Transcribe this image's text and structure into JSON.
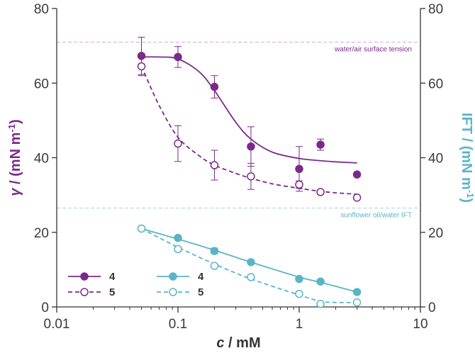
{
  "chart_data": {
    "type": "scatter",
    "xlabel": {
      "var": "c",
      "unit": " / mM"
    },
    "ylabel_left": {
      "var": "γ",
      "unit": " / (mN m",
      "sup": "-1",
      "close": ")"
    },
    "ylabel_right": {
      "prefix": "IFT / (mN m",
      "sup": "-1",
      "close": ")"
    },
    "x_scale": "log",
    "xlim": [
      0.01,
      10
    ],
    "ylim": [
      0,
      80
    ],
    "x_ticks": [
      0.01,
      0.1,
      1,
      10
    ],
    "x_tick_labels": [
      "0.01",
      "0.1",
      "1",
      "10"
    ],
    "y_ticks": [
      0,
      20,
      40,
      60,
      80
    ],
    "y_tick_labels": [
      "0",
      "20",
      "40",
      "60",
      "80"
    ],
    "colors": {
      "purple": "#7b2a8a",
      "blue": "#5ab4c8",
      "ref_purple": "#dca3dc",
      "ref_blue": "#a8d6e0",
      "axis": "#333333"
    },
    "reference_lines": [
      {
        "label": "water/air surface tension",
        "y": 71,
        "color": "ref_purple"
      },
      {
        "label": "sunflower oil/water IFT",
        "y": 26.5,
        "color": "ref_blue"
      }
    ],
    "series": [
      {
        "name": "4",
        "axis": "left",
        "color": "purple",
        "marker": "filled",
        "line": "solid",
        "points": [
          {
            "x": 0.05,
            "y": 67.3,
            "err": 5.0
          },
          {
            "x": 0.1,
            "y": 67.0,
            "err": 2.8
          },
          {
            "x": 0.2,
            "y": 59.0,
            "err": 3.0
          },
          {
            "x": 0.4,
            "y": 43.0,
            "err": 5.3
          },
          {
            "x": 1.0,
            "y": 37.0,
            "err": 6.0
          },
          {
            "x": 1.5,
            "y": 43.5,
            "err": 1.5
          },
          {
            "x": 3.0,
            "y": 35.5,
            "err": 0.5
          }
        ],
        "fit": {
          "x": [
            0.05,
            0.07,
            0.1,
            0.15,
            0.2,
            0.3,
            0.4,
            0.6,
            1.0,
            1.5,
            2.0,
            3.0
          ],
          "y": [
            67.0,
            67.0,
            66.5,
            63.0,
            58.0,
            49.5,
            45.0,
            41.5,
            39.8,
            39.2,
            38.9,
            38.6
          ]
        }
      },
      {
        "name": "5",
        "axis": "left",
        "color": "purple",
        "marker": "open",
        "line": "dashed",
        "points": [
          {
            "x": 0.05,
            "y": 64.5,
            "err": 2.5
          },
          {
            "x": 0.1,
            "y": 43.8,
            "err": 4.8
          },
          {
            "x": 0.2,
            "y": 38.0,
            "err": 4.0
          },
          {
            "x": 0.4,
            "y": 35.0,
            "err": 3.5
          },
          {
            "x": 1.0,
            "y": 32.8,
            "err": 1.0
          },
          {
            "x": 1.5,
            "y": 30.8,
            "err": 0.6
          },
          {
            "x": 3.0,
            "y": 29.3,
            "err": 0.5
          }
        ],
        "fit": {
          "x": [
            0.05,
            0.07,
            0.1,
            0.15,
            0.2,
            0.3,
            0.4,
            0.6,
            1.0,
            1.5,
            2.0,
            3.0
          ],
          "y": [
            64.5,
            54.0,
            45.5,
            40.5,
            38.0,
            35.8,
            34.5,
            33.0,
            31.8,
            31.0,
            30.6,
            30.2
          ]
        }
      },
      {
        "name": "4",
        "axis": "right",
        "color": "blue",
        "marker": "filled",
        "line": "solid",
        "points": [
          {
            "x": 0.05,
            "y": 21.0,
            "err": 0.4
          },
          {
            "x": 0.1,
            "y": 18.5,
            "err": 0.4
          },
          {
            "x": 0.2,
            "y": 15.0,
            "err": 0.8
          },
          {
            "x": 0.4,
            "y": 12.0,
            "err": 0.3
          },
          {
            "x": 1.0,
            "y": 7.5,
            "err": 0.3
          },
          {
            "x": 1.5,
            "y": 6.8,
            "err": 0.3
          },
          {
            "x": 3.0,
            "y": 4.0,
            "err": 0.5
          }
        ],
        "fit": {
          "x": [
            0.05,
            0.1,
            0.2,
            0.4,
            1.0,
            1.5,
            3.0
          ],
          "y": [
            21.0,
            18.2,
            15.2,
            12.0,
            8.0,
            6.6,
            4.0
          ]
        }
      },
      {
        "name": "5",
        "axis": "right",
        "color": "blue",
        "marker": "open",
        "line": "dashed",
        "points": [
          {
            "x": 0.05,
            "y": 21.0,
            "err": 0.4
          },
          {
            "x": 0.1,
            "y": 15.5,
            "err": 0.6
          },
          {
            "x": 0.2,
            "y": 11.0,
            "err": 0.3
          },
          {
            "x": 0.4,
            "y": 8.0,
            "err": 0.3
          },
          {
            "x": 1.0,
            "y": 3.5,
            "err": 0.5
          },
          {
            "x": 1.5,
            "y": 0.8,
            "err": 0.3
          },
          {
            "x": 3.0,
            "y": 1.2,
            "err": 0.3
          }
        ],
        "fit": {
          "x": [
            0.05,
            0.1,
            0.2,
            0.4,
            1.0,
            1.5,
            2.0,
            3.0
          ],
          "y": [
            21.0,
            16.0,
            11.5,
            7.5,
            3.2,
            1.5,
            1.2,
            1.2
          ]
        }
      }
    ],
    "legend": {
      "position": "bottom-left",
      "columns": [
        {
          "color": "purple",
          "series": [
            0,
            1
          ]
        },
        {
          "color": "blue",
          "series": [
            2,
            3
          ]
        }
      ]
    }
  }
}
